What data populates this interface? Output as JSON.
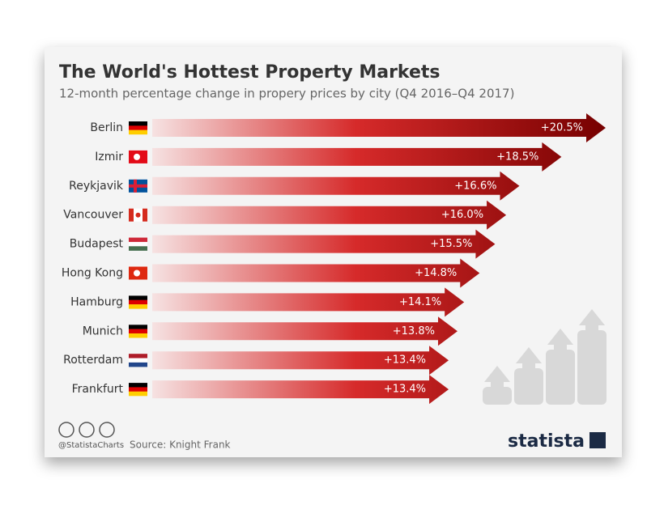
{
  "chart_data": {
    "type": "bar",
    "orientation": "horizontal",
    "title": "The World's Hottest Property Markets",
    "subtitle": "12-month percentage change in propery prices by city (Q4 2016–Q4 2017)",
    "categories": [
      "Berlin",
      "Izmir",
      "Reykjavik",
      "Vancouver",
      "Budapest",
      "Hong Kong",
      "Hamburg",
      "Munich",
      "Rotterdam",
      "Frankfurt"
    ],
    "values": [
      20.5,
      18.5,
      16.6,
      16.0,
      15.5,
      14.8,
      14.1,
      13.8,
      13.4,
      13.4
    ],
    "value_labels": [
      "+20.5%",
      "+18.5%",
      "+16.6%",
      "+16.0%",
      "+15.5%",
      "+14.8%",
      "+14.1%",
      "+13.8%",
      "+13.4%",
      "+13.4%"
    ],
    "color": "#b00000",
    "source": "Source: Knight Frank",
    "handle": "@StatistaCharts",
    "brand": "statista"
  }
}
